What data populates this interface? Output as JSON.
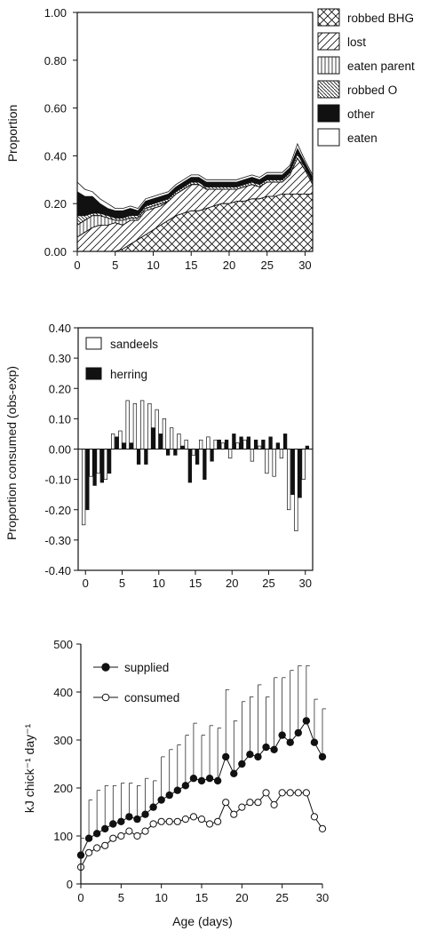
{
  "chart_data": [
    {
      "type": "area",
      "stacked": true,
      "ylabel": "Proportion",
      "xlabel": "",
      "xlim": [
        0,
        31
      ],
      "ylim": [
        0,
        1.0
      ],
      "x_ticks": [
        0,
        5,
        10,
        15,
        20,
        25,
        30
      ],
      "y_ticks": [
        "0.00",
        "0.20",
        "0.40",
        "0.60",
        "0.80",
        "1.00"
      ],
      "legend_position": "right",
      "grid": false,
      "x": [
        0,
        1,
        2,
        3,
        4,
        5,
        6,
        7,
        8,
        9,
        10,
        11,
        12,
        13,
        14,
        15,
        16,
        17,
        18,
        19,
        20,
        21,
        22,
        23,
        24,
        25,
        26,
        27,
        28,
        29,
        30,
        31
      ],
      "series": [
        {
          "name": "robbed BHG",
          "pattern": "crosshatch",
          "values": [
            0.0,
            0.0,
            0.0,
            0.0,
            0.0,
            0.0,
            0.01,
            0.03,
            0.05,
            0.07,
            0.09,
            0.11,
            0.13,
            0.15,
            0.16,
            0.17,
            0.17,
            0.18,
            0.19,
            0.2,
            0.2,
            0.21,
            0.21,
            0.22,
            0.22,
            0.23,
            0.23,
            0.24,
            0.24,
            0.24,
            0.24,
            0.24
          ]
        },
        {
          "name": "lost",
          "pattern": "diagonal",
          "values": [
            0.06,
            0.08,
            0.1,
            0.11,
            0.11,
            0.12,
            0.1,
            0.1,
            0.08,
            0.1,
            0.09,
            0.08,
            0.08,
            0.09,
            0.1,
            0.11,
            0.11,
            0.08,
            0.07,
            0.06,
            0.06,
            0.05,
            0.06,
            0.06,
            0.05,
            0.06,
            0.06,
            0.05,
            0.08,
            0.15,
            0.1,
            0.04
          ]
        },
        {
          "name": "eaten parent",
          "pattern": "vertical",
          "values": [
            0.05,
            0.05,
            0.05,
            0.04,
            0.03,
            0.01,
            0.02,
            0.01,
            0.01,
            0.01,
            0.01,
            0.01,
            0.0,
            0.0,
            0.0,
            0.0,
            0.0,
            0.0,
            0.0,
            0.0,
            0.0,
            0.0,
            0.0,
            0.0,
            0.0,
            0.0,
            0.0,
            0.0,
            0.0,
            0.0,
            0.0,
            0.0
          ]
        },
        {
          "name": "robbed O",
          "pattern": "backslash",
          "values": [
            0.04,
            0.02,
            0.01,
            0.01,
            0.01,
            0.01,
            0.01,
            0.01,
            0.01,
            0.01,
            0.01,
            0.01,
            0.01,
            0.01,
            0.01,
            0.01,
            0.01,
            0.01,
            0.01,
            0.01,
            0.01,
            0.01,
            0.01,
            0.01,
            0.01,
            0.01,
            0.01,
            0.01,
            0.01,
            0.02,
            0.01,
            0.01
          ]
        },
        {
          "name": "other",
          "pattern": "solid",
          "values": [
            0.1,
            0.08,
            0.07,
            0.04,
            0.03,
            0.03,
            0.03,
            0.03,
            0.02,
            0.02,
            0.02,
            0.02,
            0.02,
            0.02,
            0.02,
            0.02,
            0.02,
            0.02,
            0.02,
            0.02,
            0.02,
            0.02,
            0.02,
            0.02,
            0.02,
            0.02,
            0.02,
            0.02,
            0.02,
            0.02,
            0.02,
            0.02
          ]
        },
        {
          "name": "eaten",
          "pattern": "empty",
          "values": [
            0.04,
            0.03,
            0.02,
            0.02,
            0.02,
            0.01,
            0.01,
            0.01,
            0.01,
            0.01,
            0.01,
            0.01,
            0.01,
            0.01,
            0.01,
            0.01,
            0.01,
            0.01,
            0.01,
            0.01,
            0.01,
            0.01,
            0.01,
            0.01,
            0.01,
            0.01,
            0.01,
            0.01,
            0.01,
            0.02,
            0.01,
            0.01
          ]
        }
      ]
    },
    {
      "type": "bar",
      "ylabel": "Proportion consumed (obs-exp)",
      "xlabel": "",
      "xlim": [
        -1,
        31
      ],
      "ylim": [
        -0.4,
        0.4
      ],
      "x_ticks": [
        0,
        5,
        10,
        15,
        20,
        25,
        30
      ],
      "y_ticks": [
        "-0.40",
        "-0.30",
        "-0.20",
        "-0.10",
        "0.00",
        "0.10",
        "0.20",
        "0.30",
        "0.40"
      ],
      "legend_position": "top-left",
      "grid": false,
      "x": [
        0,
        1,
        2,
        3,
        4,
        5,
        6,
        7,
        8,
        9,
        10,
        11,
        12,
        13,
        14,
        15,
        16,
        17,
        18,
        19,
        20,
        21,
        22,
        23,
        24,
        25,
        26,
        27,
        28,
        29,
        30
      ],
      "series": [
        {
          "name": "sandeels",
          "fill": "empty",
          "values": [
            -0.25,
            -0.09,
            -0.08,
            -0.1,
            0.05,
            0.06,
            0.16,
            0.15,
            0.16,
            0.15,
            0.13,
            0.1,
            0.07,
            0.05,
            0.03,
            -0.02,
            0.03,
            0.04,
            0.03,
            0.02,
            -0.03,
            0.02,
            0.03,
            -0.04,
            0.01,
            -0.08,
            -0.09,
            -0.03,
            -0.2,
            -0.27,
            -0.1
          ]
        },
        {
          "name": "herring",
          "fill": "solid",
          "values": [
            -0.2,
            -0.12,
            -0.11,
            -0.08,
            0.04,
            0.02,
            0.02,
            -0.05,
            -0.05,
            0.07,
            0.05,
            -0.02,
            -0.02,
            0.01,
            -0.11,
            -0.05,
            -0.1,
            -0.04,
            0.03,
            0.03,
            0.05,
            0.04,
            0.04,
            0.03,
            0.03,
            0.04,
            0.02,
            0.05,
            -0.15,
            -0.16,
            0.01
          ]
        }
      ]
    },
    {
      "type": "line",
      "ylabel": "kJ chick⁻¹ day⁻¹",
      "xlabel": "Age (days)",
      "xlim": [
        0,
        30
      ],
      "ylim": [
        0,
        500
      ],
      "x_ticks": [
        0,
        5,
        10,
        15,
        20,
        25,
        30
      ],
      "y_ticks": [
        "0",
        "100",
        "200",
        "300",
        "400",
        "500"
      ],
      "legend_position": "top-left",
      "grid": false,
      "error_bars": "positive only",
      "x": [
        0,
        1,
        2,
        3,
        4,
        5,
        6,
        7,
        8,
        9,
        10,
        11,
        12,
        13,
        14,
        15,
        16,
        17,
        18,
        19,
        20,
        21,
        22,
        23,
        24,
        25,
        26,
        27,
        28,
        29,
        30
      ],
      "series": [
        {
          "name": "supplied",
          "marker": "filled-circle",
          "values": [
            60,
            95,
            105,
            115,
            125,
            130,
            140,
            135,
            145,
            160,
            175,
            185,
            195,
            205,
            220,
            215,
            220,
            215,
            265,
            230,
            250,
            270,
            265,
            285,
            280,
            310,
            295,
            315,
            340,
            295,
            265
          ],
          "errors": [
            35,
            80,
            90,
            90,
            80,
            80,
            70,
            70,
            75,
            55,
            90,
            95,
            95,
            105,
            115,
            95,
            110,
            110,
            140,
            110,
            130,
            120,
            150,
            105,
            150,
            120,
            150,
            140,
            115,
            90,
            100
          ]
        },
        {
          "name": "consumed",
          "marker": "open-circle",
          "values": [
            35,
            65,
            75,
            80,
            95,
            100,
            110,
            100,
            110,
            125,
            130,
            130,
            130,
            135,
            140,
            135,
            125,
            130,
            170,
            145,
            160,
            170,
            170,
            190,
            165,
            190,
            190,
            190,
            190,
            140,
            115
          ]
        },
        {
          "name": "",
          "marker": "none",
          "values": [
            null,
            null,
            null,
            null,
            null,
            null,
            null,
            null,
            null,
            null,
            null,
            null,
            null,
            null,
            null,
            null,
            null,
            null,
            null,
            null,
            null,
            null,
            null,
            null,
            null,
            null,
            null,
            null,
            null,
            null,
            null
          ],
          "note": ""
        }
      ]
    }
  ]
}
